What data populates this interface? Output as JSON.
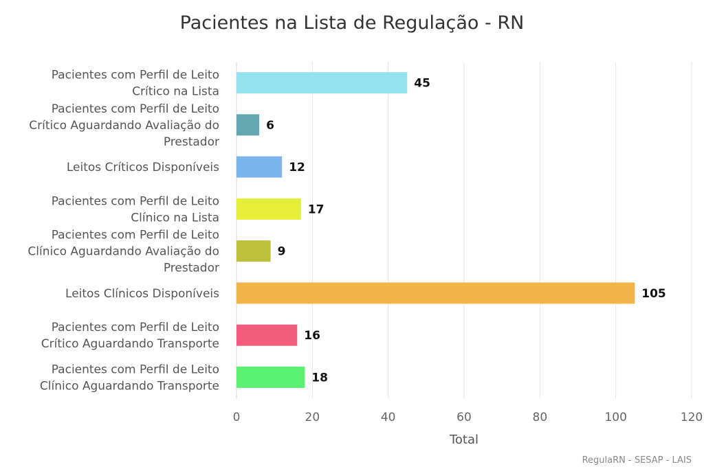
{
  "chart_data": {
    "type": "bar",
    "orientation": "horizontal",
    "title": "Pacientes na Lista de Regulação - RN",
    "xlabel": "Total",
    "ylabel": "",
    "xlim": [
      0,
      120
    ],
    "ticks": [
      0,
      20,
      40,
      60,
      80,
      100,
      120
    ],
    "grid": true,
    "credit": "RegulaRN - SESAP - LAIS",
    "categories": [
      [
        "Pacientes com Perfil de Leito",
        "Crítico na Lista"
      ],
      [
        "Pacientes com Perfil de Leito",
        "Crítico Aguardando Avaliação do",
        "Prestador"
      ],
      [
        "Leitos Críticos Disponíveis"
      ],
      [
        "Pacientes com Perfil de Leito",
        "Clínico na Lista"
      ],
      [
        "Pacientes com Perfil de Leito",
        "Clínico Aguardando Avaliação do",
        "Prestador"
      ],
      [
        "Leitos Clínicos Disponíveis"
      ],
      [
        "Pacientes com Perfil de Leito",
        "Crítico Aguardando Transporte"
      ],
      [
        "Pacientes com Perfil de Leito",
        "Clínico Aguardando Transporte"
      ]
    ],
    "values": [
      45,
      6,
      12,
      17,
      9,
      105,
      16,
      18
    ],
    "colors": [
      "#93e2ed",
      "#64a6b0",
      "#7cb5ec",
      "#e5ee38",
      "#bcc03a",
      "#f3b54b",
      "#f25d7e",
      "#5cf072"
    ]
  }
}
